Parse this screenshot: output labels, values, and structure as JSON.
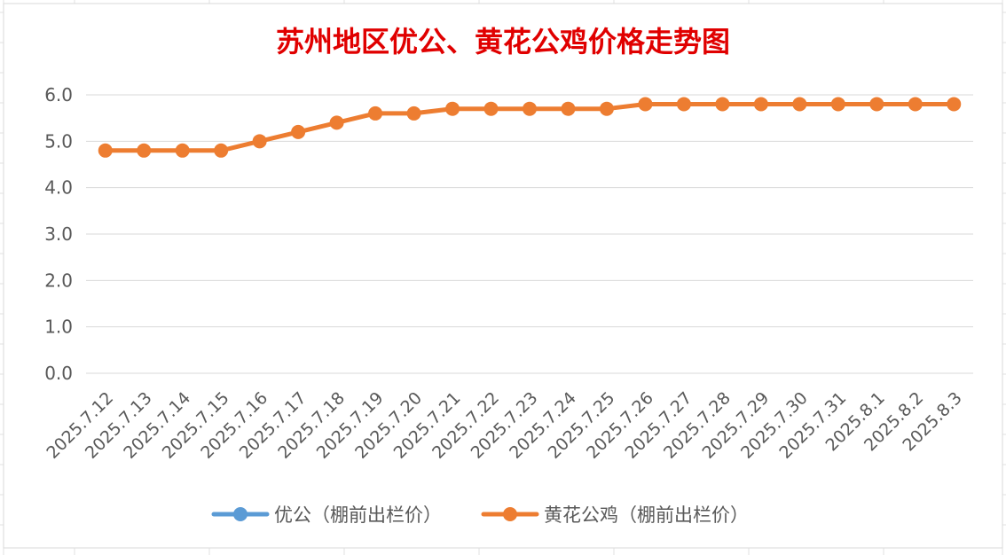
{
  "chart_data": {
    "type": "line",
    "title": "苏州地区优公、黄花公鸡价格走势图",
    "xlabel": "",
    "ylabel": "",
    "ylim": [
      0,
      6
    ],
    "ytick_labels": [
      "0.0",
      "1.0",
      "2.0",
      "3.0",
      "4.0",
      "5.0",
      "6.0"
    ],
    "grid": true,
    "legend_position": "bottom",
    "categories": [
      "2025.7.12",
      "2025.7.13",
      "2025.7.14",
      "2025.7.15",
      "2025.7.16",
      "2025.7.17",
      "2025.7.18",
      "2025.7.19",
      "2025.7.20",
      "2025.7.21",
      "2025.7.22",
      "2025.7.23",
      "2025.7.24",
      "2025.7.25",
      "2025.7.26",
      "2025.7.27",
      "2025.7.28",
      "2025.7.29",
      "2025.7.30",
      "2025.7.31",
      "2025.8.1",
      "2025.8.2",
      "2025.8.3"
    ],
    "series": [
      {
        "name": "优公（棚前出栏价）",
        "color": "#5b9bd5",
        "values": [
          null,
          null,
          null,
          null,
          null,
          null,
          null,
          null,
          null,
          null,
          null,
          null,
          null,
          null,
          null,
          null,
          null,
          null,
          null,
          null,
          null,
          null,
          null
        ]
      },
      {
        "name": "黄花公鸡（棚前出栏价）",
        "color": "#ed7d31",
        "values": [
          4.8,
          4.8,
          4.8,
          4.8,
          5.0,
          5.2,
          5.4,
          5.6,
          5.6,
          5.7,
          5.7,
          5.7,
          5.7,
          5.7,
          5.8,
          5.8,
          5.8,
          5.8,
          5.8,
          5.8,
          5.8,
          5.8,
          5.8
        ]
      }
    ]
  }
}
